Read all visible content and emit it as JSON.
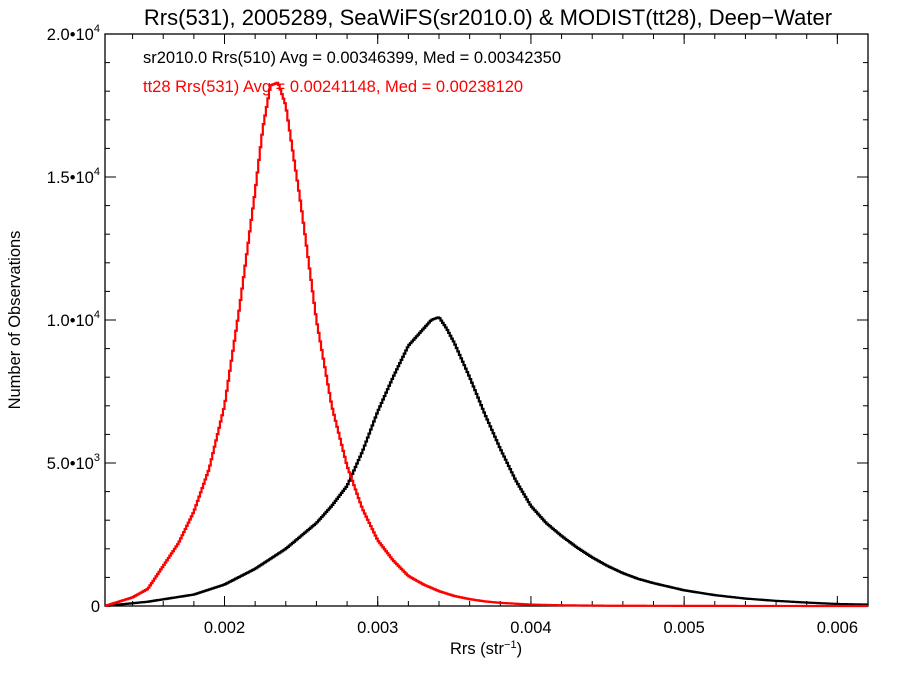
{
  "chart_data": {
    "type": "line",
    "title": "Rrs(531), 2005289, SeaWiFS(sr2010.0) & MODIST(tt28), Deep−Water",
    "xlabel": "Rrs (str",
    "xlabel_sup": "−1",
    "xlabel_end": ")",
    "ylabel": "Number of Observations",
    "xlim": [
      0.00122,
      0.0062
    ],
    "ylim": [
      0,
      20000
    ],
    "x_ticks": [
      {
        "value": 0.002,
        "label": "0.002"
      },
      {
        "value": 0.003,
        "label": "0.003"
      },
      {
        "value": 0.004,
        "label": "0.004"
      },
      {
        "value": 0.005,
        "label": "0.005"
      },
      {
        "value": 0.006,
        "label": "0.006"
      }
    ],
    "y_ticks": [
      {
        "value": 0,
        "mant": "0",
        "exp": ""
      },
      {
        "value": 5000,
        "mant": "5.0•10",
        "exp": "3"
      },
      {
        "value": 10000,
        "mant": "1.0•10",
        "exp": "4"
      },
      {
        "value": 15000,
        "mant": "1.5•10",
        "exp": "4"
      },
      {
        "value": 20000,
        "mant": "2.0•10",
        "exp": "4"
      }
    ],
    "x_minor_step": 0.0002,
    "y_minor_step": 1000,
    "grid": false,
    "series": [
      {
        "color": "#000000",
        "label": "sr2010.0 Rrs(510) Avg = 0.00346399, Med = 0.00342350",
        "x": [
          0.00122,
          0.0015,
          0.0018,
          0.002,
          0.0022,
          0.0024,
          0.0026,
          0.0027,
          0.0028,
          0.0029,
          0.003,
          0.0031,
          0.0032,
          0.0033,
          0.00335,
          0.0034,
          0.00345,
          0.0035,
          0.0036,
          0.0037,
          0.0038,
          0.0039,
          0.004,
          0.0041,
          0.0042,
          0.0043,
          0.0044,
          0.0045,
          0.0046,
          0.0047,
          0.0048,
          0.005,
          0.0052,
          0.0054,
          0.0056,
          0.0058,
          0.006,
          0.0062
        ],
        "values": [
          0,
          150,
          400,
          750,
          1300,
          2000,
          2900,
          3500,
          4200,
          5400,
          6800,
          8000,
          9100,
          9700,
          10000,
          10100,
          9700,
          9200,
          8000,
          6700,
          5500,
          4400,
          3500,
          2900,
          2450,
          2050,
          1700,
          1400,
          1150,
          950,
          800,
          550,
          380,
          260,
          180,
          120,
          70,
          50
        ]
      },
      {
        "color": "#ff0000",
        "label": "tt28 Rrs(531) Avg = 0.00241148, Med = 0.00238120",
        "x": [
          0.00122,
          0.0014,
          0.0015,
          0.0016,
          0.0017,
          0.0018,
          0.0019,
          0.002,
          0.0021,
          0.0022,
          0.00225,
          0.0023,
          0.00235,
          0.0024,
          0.0025,
          0.0026,
          0.0027,
          0.0028,
          0.0029,
          0.003,
          0.0031,
          0.0032,
          0.0033,
          0.0034,
          0.0035,
          0.0036,
          0.0037,
          0.0038,
          0.004,
          0.0042,
          0.0045,
          0.005,
          0.0055,
          0.0062
        ],
        "values": [
          0,
          300,
          600,
          1400,
          2200,
          3300,
          4800,
          7000,
          10500,
          14500,
          16700,
          18200,
          18300,
          17500,
          14000,
          10000,
          7000,
          4900,
          3400,
          2300,
          1600,
          1050,
          750,
          520,
          350,
          240,
          160,
          110,
          50,
          25,
          10,
          5,
          2,
          0
        ]
      }
    ]
  }
}
